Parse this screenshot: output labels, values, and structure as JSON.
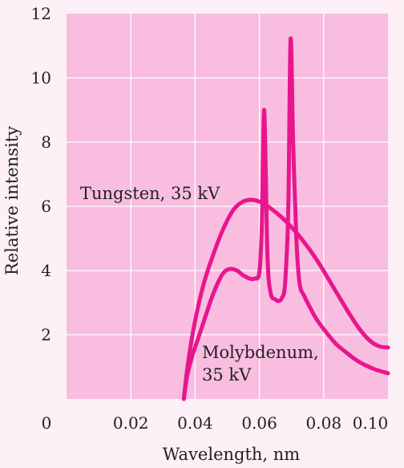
{
  "chart_data": {
    "type": "line",
    "title": "",
    "xlabel": "Wavelength, nm",
    "ylabel": "Relative intensity",
    "xlim": [
      0,
      0.1
    ],
    "ylim": [
      0,
      12
    ],
    "grid": true,
    "x_ticks": [
      "0.02",
      "0.04",
      "0.06",
      "0.08",
      "0.10"
    ],
    "y_ticks": [
      "2",
      "4",
      "6",
      "8",
      "10",
      "12"
    ],
    "origin_label": "0",
    "colors": {
      "plot_background": "#f9bde0",
      "page_background": "#fdf0f6",
      "grid": "#ffffff",
      "series": "#e8168c"
    },
    "series": [
      {
        "name": "Tungsten, 35 kV",
        "x": [
          0.0365,
          0.0375,
          0.039,
          0.041,
          0.043,
          0.046,
          0.049,
          0.052,
          0.055,
          0.058,
          0.061,
          0.064,
          0.067,
          0.07,
          0.073,
          0.076,
          0.079,
          0.082,
          0.085,
          0.088,
          0.091,
          0.094,
          0.097,
          0.1
        ],
        "y": [
          0.0,
          0.9,
          1.9,
          2.9,
          3.7,
          4.6,
          5.35,
          5.9,
          6.15,
          6.2,
          6.1,
          5.9,
          5.65,
          5.35,
          5.0,
          4.6,
          4.15,
          3.65,
          3.15,
          2.65,
          2.2,
          1.85,
          1.65,
          1.6
        ]
      },
      {
        "name": "Molybdenum, 35 kV",
        "x": [
          0.0365,
          0.0375,
          0.039,
          0.041,
          0.043,
          0.045,
          0.047,
          0.049,
          0.051,
          0.053,
          0.055,
          0.057,
          0.0585,
          0.06,
          0.0608,
          0.0615,
          0.0625,
          0.0635,
          0.065,
          0.066,
          0.067,
          0.068,
          0.069,
          0.0697,
          0.0705,
          0.0715,
          0.0725,
          0.074,
          0.076,
          0.078,
          0.081,
          0.084,
          0.087,
          0.09,
          0.093,
          0.096,
          0.1
        ],
        "y": [
          0.0,
          0.7,
          1.3,
          1.9,
          2.5,
          3.1,
          3.6,
          3.95,
          4.05,
          4.0,
          3.85,
          3.75,
          3.75,
          3.95,
          5.5,
          9.0,
          4.5,
          3.3,
          3.1,
          3.05,
          3.15,
          3.6,
          6.0,
          11.2,
          8.0,
          5.0,
          3.6,
          3.2,
          2.8,
          2.45,
          2.05,
          1.7,
          1.45,
          1.22,
          1.05,
          0.92,
          0.8
        ]
      }
    ],
    "annotations": [
      {
        "lines": [
          "Tungsten, 35 kV"
        ]
      },
      {
        "lines": [
          "Molybdenum,",
          "35 kV"
        ]
      }
    ]
  }
}
